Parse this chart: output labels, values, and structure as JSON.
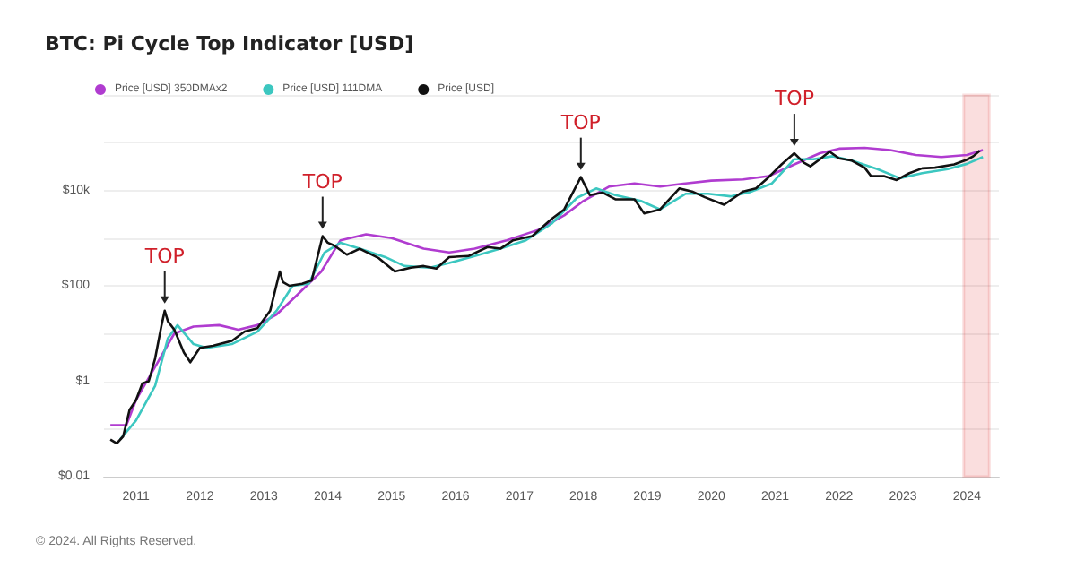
{
  "chart_data": {
    "type": "line",
    "title": "BTC: Pi Cycle Top Indicator [USD]",
    "log": "y",
    "grid": "y",
    "legend": "top left",
    "marker": "none",
    "line_style": "solid",
    "xlim": [
      2010.5,
      2024.5
    ],
    "xticks": [
      2011,
      2012,
      2013,
      2014,
      2015,
      2016,
      2017,
      2018,
      2019,
      2020,
      2021,
      2022,
      2023,
      2024
    ],
    "ylim": [
      0.01,
      1000000
    ],
    "yticks": [
      {
        "value": 0.01,
        "label": "$0.01"
      },
      {
        "value": 0.1,
        "label": null
      },
      {
        "value": 1,
        "label": "$1"
      },
      {
        "value": 10,
        "label": null
      },
      {
        "value": 100,
        "label": "$100"
      },
      {
        "value": 1000,
        "label": null
      },
      {
        "value": 10000,
        "label": "$10k"
      },
      {
        "value": 100000,
        "label": null
      },
      {
        "value": 1000000,
        "label": null
      }
    ],
    "series": [
      {
        "name": "Price [USD] 350DMAx2",
        "color": "#b03cd0",
        "x": [
          2010.6,
          2010.85,
          2011.0,
          2011.3,
          2011.6,
          2011.9,
          2012.3,
          2012.6,
          2012.9,
          2013.2,
          2013.5,
          2013.9,
          2014.2,
          2014.6,
          2015.0,
          2015.5,
          2015.9,
          2016.3,
          2016.8,
          2017.3,
          2017.7,
          2018.0,
          2018.4,
          2018.8,
          2019.2,
          2019.6,
          2020.0,
          2020.5,
          2020.9,
          2021.3,
          2021.7,
          2022.0,
          2022.4,
          2022.8,
          2023.2,
          2023.6,
          2024.0,
          2024.25
        ],
        "values": [
          0.12,
          0.12,
          0.4,
          2,
          10,
          14,
          15,
          12,
          15,
          25,
          60,
          200,
          900,
          1200,
          1000,
          600,
          500,
          600,
          900,
          1500,
          3000,
          6000,
          12000,
          14000,
          12000,
          14000,
          16000,
          17000,
          20000,
          35000,
          60000,
          75000,
          78000,
          70000,
          55000,
          50000,
          55000,
          70000
        ]
      },
      {
        "name": "Price [USD] 111DMA",
        "color": "#3cc7c0",
        "x": [
          2010.75,
          2011.0,
          2011.3,
          2011.5,
          2011.65,
          2011.9,
          2012.1,
          2012.5,
          2012.9,
          2013.2,
          2013.45,
          2013.7,
          2013.95,
          2014.2,
          2014.5,
          2014.9,
          2015.2,
          2015.6,
          2015.9,
          2016.3,
          2016.7,
          2017.1,
          2017.5,
          2017.9,
          2018.2,
          2018.5,
          2018.9,
          2019.2,
          2019.6,
          2019.95,
          2020.3,
          2020.6,
          2020.95,
          2021.3,
          2021.6,
          2021.9,
          2022.2,
          2022.6,
          2022.95,
          2023.3,
          2023.7,
          2024.0,
          2024.25
        ],
        "values": [
          0.06,
          0.15,
          0.8,
          8,
          15,
          6,
          5,
          6,
          11,
          30,
          100,
          110,
          500,
          800,
          600,
          400,
          260,
          240,
          300,
          420,
          600,
          900,
          2000,
          7000,
          11000,
          8000,
          6000,
          4000,
          8500,
          8500,
          7500,
          9200,
          14000,
          45000,
          45000,
          52000,
          42000,
          28000,
          18000,
          23000,
          28000,
          36000,
          50000
        ]
      },
      {
        "name": "Price [USD]",
        "color": "#111111",
        "x": [
          2010.6,
          2010.7,
          2010.8,
          2010.9,
          2011.0,
          2011.1,
          2011.2,
          2011.3,
          2011.4,
          2011.45,
          2011.5,
          2011.6,
          2011.75,
          2011.85,
          2012.0,
          2012.2,
          2012.5,
          2012.7,
          2012.9,
          2013.1,
          2013.25,
          2013.3,
          2013.4,
          2013.6,
          2013.75,
          2013.92,
          2014.0,
          2014.1,
          2014.3,
          2014.5,
          2014.8,
          2015.05,
          2015.3,
          2015.5,
          2015.7,
          2015.9,
          2016.2,
          2016.5,
          2016.7,
          2016.9,
          2017.2,
          2017.5,
          2017.7,
          2017.96,
          2018.1,
          2018.3,
          2018.5,
          2018.8,
          2018.95,
          2019.2,
          2019.5,
          2019.7,
          2019.9,
          2020.2,
          2020.5,
          2020.7,
          2020.9,
          2021.1,
          2021.3,
          2021.45,
          2021.55,
          2021.7,
          2021.85,
          2022.0,
          2022.2,
          2022.4,
          2022.5,
          2022.7,
          2022.9,
          2023.1,
          2023.3,
          2023.5,
          2023.8,
          2024.0,
          2024.1,
          2024.2
        ],
        "values": [
          0.06,
          0.05,
          0.07,
          0.25,
          0.4,
          0.9,
          1,
          3,
          15,
          30,
          18,
          12,
          4,
          2.5,
          5,
          5.5,
          7,
          11,
          13,
          30,
          200,
          120,
          100,
          110,
          130,
          1100,
          800,
          700,
          450,
          600,
          380,
          200,
          240,
          260,
          230,
          400,
          420,
          650,
          600,
          900,
          1100,
          2500,
          4000,
          19000,
          8000,
          9000,
          6500,
          6500,
          3300,
          4000,
          11000,
          9500,
          7200,
          5000,
          9500,
          11000,
          19000,
          35000,
          60000,
          38000,
          32000,
          45000,
          65000,
          47000,
          42000,
          30000,
          20000,
          20000,
          16500,
          23000,
          29000,
          30000,
          35000,
          44000,
          52000,
          68000
        ]
      }
    ],
    "annotations": [
      {
        "text": "TOP",
        "x": 2011.45,
        "y": 30
      },
      {
        "text": "TOP",
        "x": 2013.92,
        "y": 1100
      },
      {
        "text": "TOP",
        "x": 2017.96,
        "y": 19000
      },
      {
        "text": "TOP",
        "x": 2021.3,
        "y": 60000
      },
      "© 2024. All Rights Reserved."
    ],
    "bands": [
      {
        "axis": "x",
        "from": 2023.95,
        "to": 2024.35,
        "color": "#e02020"
      }
    ]
  }
}
